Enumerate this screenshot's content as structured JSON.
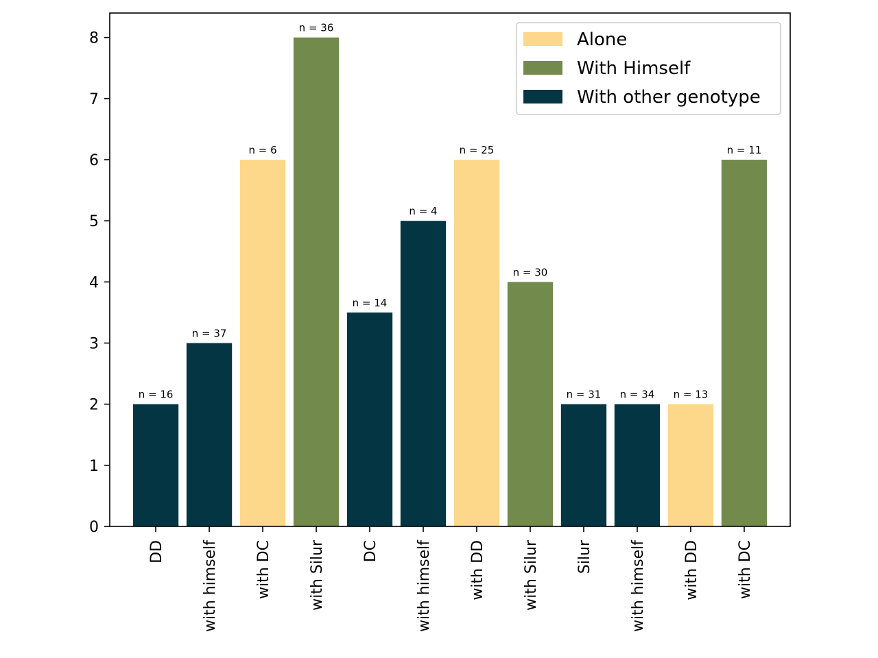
{
  "chart_data": {
    "type": "bar",
    "categories": [
      "DD",
      "with himself",
      "with DC",
      "with Silur",
      "DC",
      "with himself",
      "with DD",
      "with Silur",
      "Silur",
      "with himself",
      "with DD",
      "with DC"
    ],
    "values": [
      2,
      3,
      6,
      8,
      3.5,
      5,
      6,
      4,
      2,
      2,
      2,
      6
    ],
    "groups": [
      "With other genotype",
      "With other genotype",
      "Alone",
      "With Himself",
      "With other genotype",
      "With other genotype",
      "Alone",
      "With Himself",
      "With other genotype",
      "With other genotype",
      "Alone",
      "With Himself"
    ],
    "n_labels": [
      "n = 16",
      "n = 37",
      "n = 6",
      "n = 36",
      "n = 14",
      "n = 4",
      "n = 25",
      "n = 30",
      "n = 31",
      "n = 34",
      "n = 13",
      "n = 11"
    ],
    "ylim": [
      0,
      8.4
    ],
    "yticks": [
      0,
      1,
      2,
      3,
      4,
      5,
      6,
      7,
      8
    ],
    "legend": {
      "placement": "top-right",
      "entries": [
        {
          "label": "Alone",
          "color": "#fdd78a"
        },
        {
          "label": "With Himself",
          "color": "#738a4d"
        },
        {
          "label": "With other genotype",
          "color": "#043543"
        }
      ]
    },
    "title": "",
    "xlabel": "",
    "ylabel": "",
    "grid": false
  }
}
